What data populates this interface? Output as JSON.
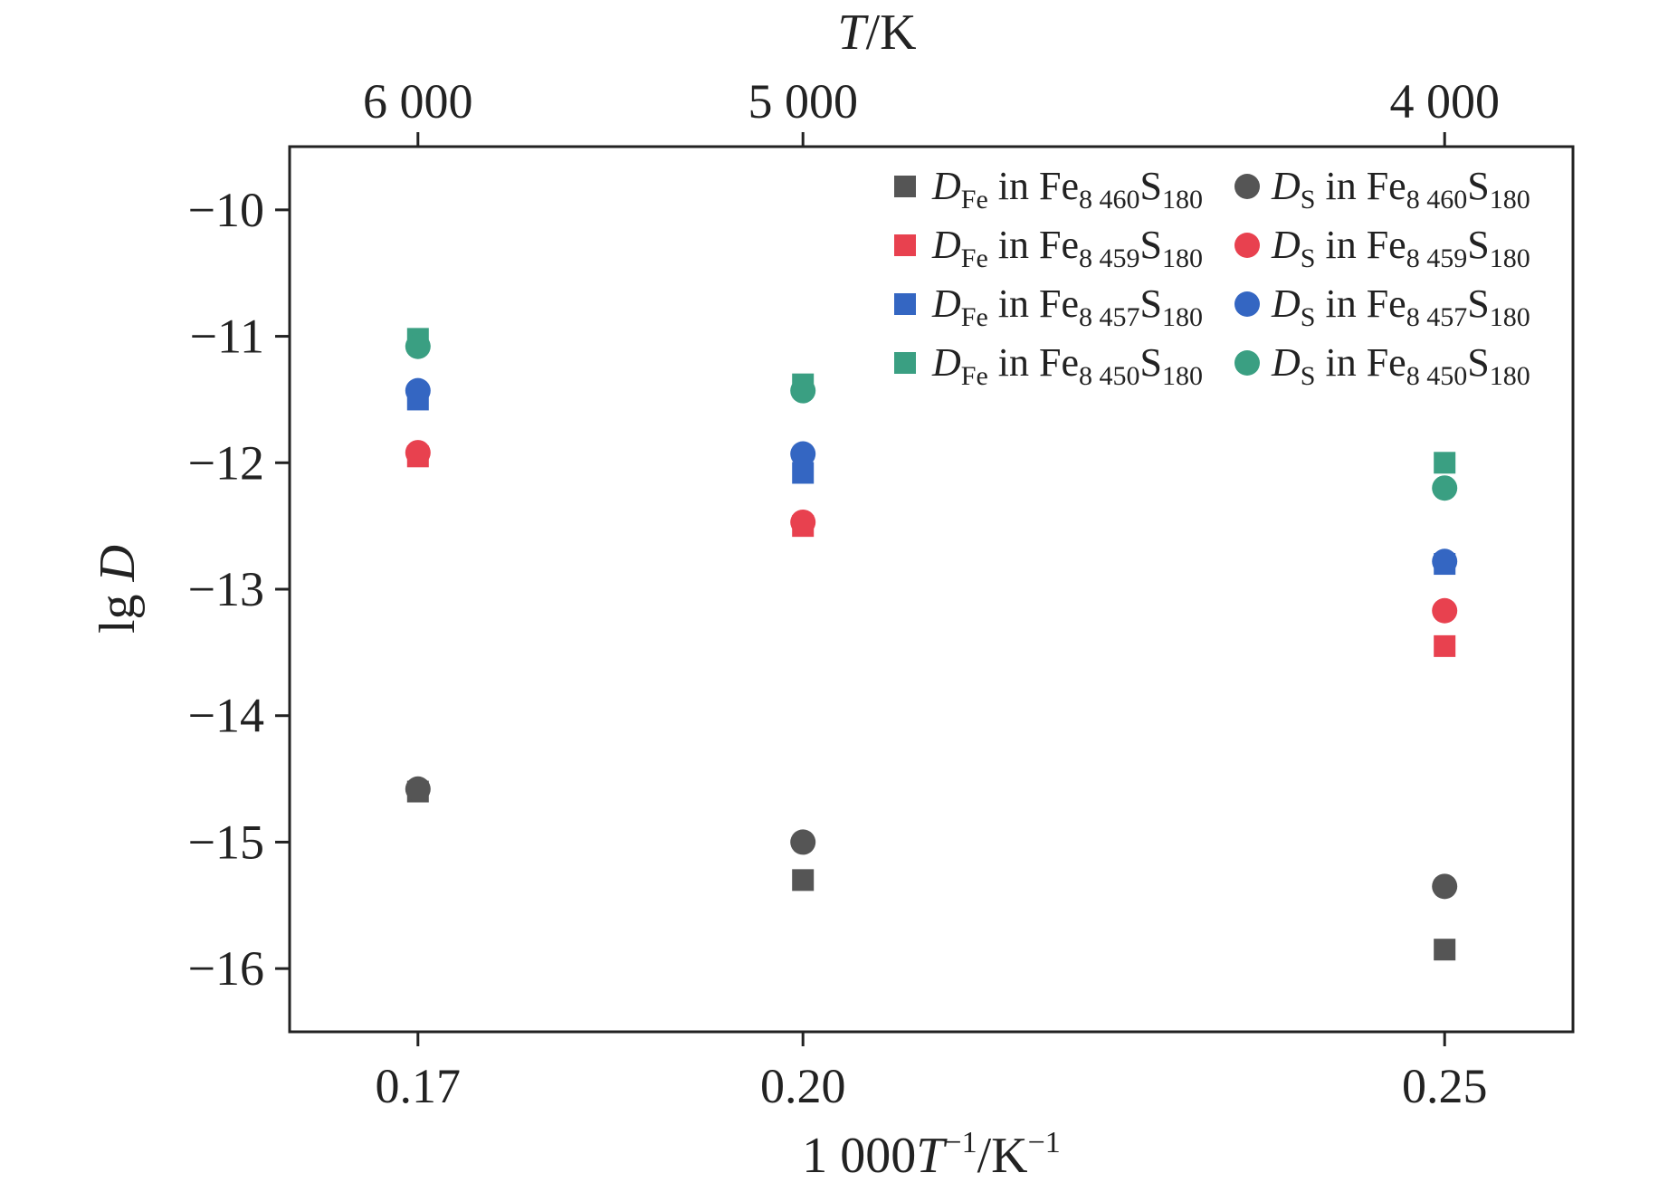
{
  "chart_data": {
    "type": "scatter",
    "x_axis_bottom": {
      "label_prefix": "1 000",
      "label_var": "T",
      "label_sup1": "−1",
      "label_mid": "/K",
      "label_sup2": "−1",
      "ticks": [
        0.17,
        0.2,
        0.25
      ],
      "tick_labels": [
        "0.17",
        "0.20",
        "0.25"
      ],
      "range": [
        0.16,
        0.26
      ]
    },
    "x_axis_top": {
      "label_var": "T",
      "label_unit": "/K",
      "tick_labels": [
        "6 000",
        "5 000",
        "4 000"
      ]
    },
    "y_axis": {
      "label_prefix": "lg ",
      "label_var": "D",
      "ticks": [
        -10,
        -11,
        -12,
        -13,
        -14,
        -15,
        -16
      ],
      "tick_labels": [
        "−10",
        "−11",
        "−12",
        "−13",
        "−14",
        "−15",
        "−16"
      ],
      "range": [
        -16.5,
        -9.5
      ]
    },
    "grid": false,
    "legend_position": "top-right",
    "series": [
      {
        "kind": "Fe",
        "marker": "square",
        "color": "#555555",
        "legend": [
          "D",
          "Fe",
          " in Fe",
          "8 460",
          "S",
          "180"
        ],
        "x": [
          0.17,
          0.2,
          0.25
        ],
        "y": [
          -14.6,
          -15.3,
          -15.85
        ]
      },
      {
        "kind": "S",
        "marker": "circle",
        "color": "#555555",
        "legend": [
          "D",
          "S",
          " in Fe",
          "8 460",
          "S",
          "180"
        ],
        "x": [
          0.17,
          0.2,
          0.25
        ],
        "y": [
          -14.58,
          -15.0,
          -15.35
        ]
      },
      {
        "kind": "Fe",
        "marker": "square",
        "color": "#e8414f",
        "legend": [
          "D",
          "Fe",
          " in Fe",
          "8 459",
          "S",
          "180"
        ],
        "x": [
          0.17,
          0.2,
          0.25
        ],
        "y": [
          -11.95,
          -12.5,
          -13.45
        ]
      },
      {
        "kind": "S",
        "marker": "circle",
        "color": "#e8414f",
        "legend": [
          "D",
          "S",
          " in Fe",
          "8 459",
          "S",
          "180"
        ],
        "x": [
          0.17,
          0.2,
          0.25
        ],
        "y": [
          -11.92,
          -12.47,
          -13.17
        ]
      },
      {
        "kind": "Fe",
        "marker": "square",
        "color": "#3466c2",
        "legend": [
          "D",
          "Fe",
          " in Fe",
          "8 457",
          "S",
          "180"
        ],
        "x": [
          0.17,
          0.2,
          0.25
        ],
        "y": [
          -11.5,
          -12.08,
          -12.8
        ]
      },
      {
        "kind": "S",
        "marker": "circle",
        "color": "#3466c2",
        "legend": [
          "D",
          "S",
          " in Fe",
          "8 457",
          "S",
          "180"
        ],
        "x": [
          0.17,
          0.2,
          0.25
        ],
        "y": [
          -11.43,
          -11.93,
          -12.78
        ]
      },
      {
        "kind": "Fe",
        "marker": "square",
        "color": "#3a9f82",
        "legend": [
          "D",
          "Fe",
          " in Fe",
          "8 450",
          "S",
          "180"
        ],
        "x": [
          0.17,
          0.2,
          0.25
        ],
        "y": [
          -11.02,
          -11.38,
          -12.0
        ]
      },
      {
        "kind": "S",
        "marker": "circle",
        "color": "#3a9f82",
        "legend": [
          "D",
          "S",
          " in Fe",
          "8 450",
          "S",
          "180"
        ],
        "x": [
          0.17,
          0.2,
          0.25
        ],
        "y": [
          -11.08,
          -11.43,
          -12.2
        ]
      }
    ]
  }
}
